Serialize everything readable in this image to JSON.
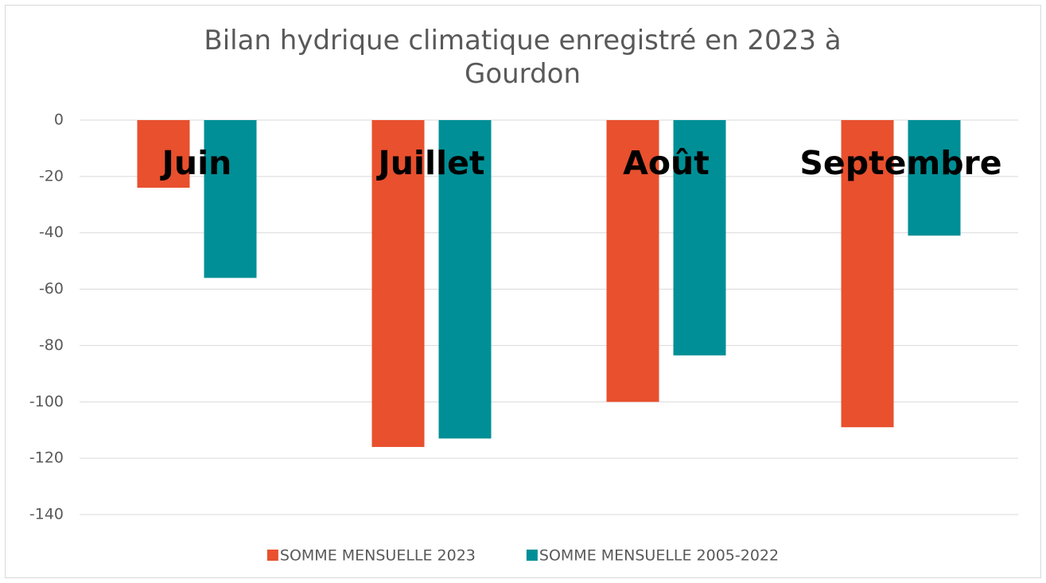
{
  "chart_data": {
    "type": "bar",
    "title": "Bilan hydrique climatique enregistré en 2023 à Gourdon",
    "categories": [
      "Juin",
      "Juillet",
      "Août",
      "Septembre"
    ],
    "series": [
      {
        "name": "SOMME MENSUELLE 2023",
        "color": "#e8502e",
        "values": [
          -24,
          -116,
          -100,
          -109
        ]
      },
      {
        "name": "SOMME MENSUELLE 2005-2022",
        "color": "#008f96",
        "values": [
          -56,
          -113,
          -83.5,
          -41
        ]
      }
    ],
    "ylim": [
      -140,
      0
    ],
    "yticks": [
      0,
      -20,
      -40,
      -60,
      -80,
      -100,
      -120,
      -140
    ],
    "grid": true,
    "legend": "bottom"
  }
}
